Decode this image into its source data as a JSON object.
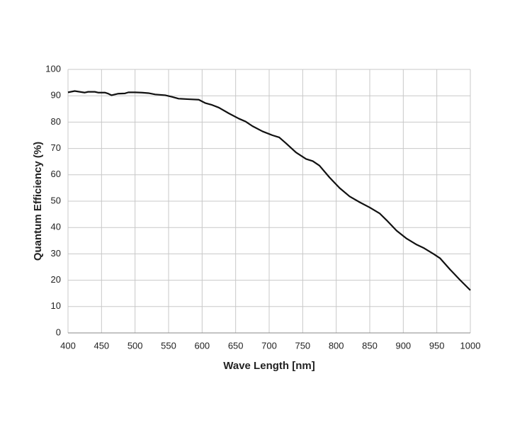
{
  "chart_data": {
    "type": "line",
    "x_label": "Wave Length [nm]",
    "y_label": "Quantum Efficiency (%)",
    "x": [
      400,
      410,
      420,
      425,
      430,
      440,
      445,
      455,
      460,
      465,
      475,
      485,
      490,
      500,
      510,
      520,
      530,
      545,
      555,
      565,
      580,
      595,
      605,
      615,
      625,
      640,
      655,
      665,
      675,
      690,
      705,
      715,
      725,
      740,
      755,
      765,
      775,
      790,
      805,
      820,
      835,
      850,
      865,
      875,
      890,
      905,
      920,
      930,
      945,
      955,
      970,
      985,
      1000
    ],
    "series": [
      {
        "name": "Quantum Efficiency",
        "color": "#111111",
        "values": [
          91.3,
          91.8,
          91.4,
          91.2,
          91.5,
          91.5,
          91.2,
          91.2,
          90.8,
          90.2,
          90.8,
          90.9,
          91.3,
          91.3,
          91.2,
          91.0,
          90.5,
          90.2,
          89.6,
          88.9,
          88.7,
          88.5,
          87.2,
          86.5,
          85.5,
          83.3,
          81.3,
          80.2,
          78.5,
          76.5,
          75.0,
          74.2,
          72.0,
          68.5,
          66.0,
          65.2,
          63.5,
          59.0,
          55.0,
          51.8,
          49.6,
          47.6,
          45.3,
          42.8,
          38.8,
          35.8,
          33.5,
          32.3,
          30.0,
          28.3,
          24.0,
          20.0,
          16.2
        ]
      }
    ],
    "xlim": [
      400,
      1000
    ],
    "xticks": [
      400,
      450,
      500,
      550,
      600,
      650,
      700,
      750,
      800,
      850,
      900,
      950,
      1000
    ],
    "ylim": [
      0,
      100
    ],
    "yticks": [
      0,
      10,
      20,
      30,
      40,
      50,
      60,
      70,
      80,
      90,
      100
    ],
    "grid": true
  }
}
